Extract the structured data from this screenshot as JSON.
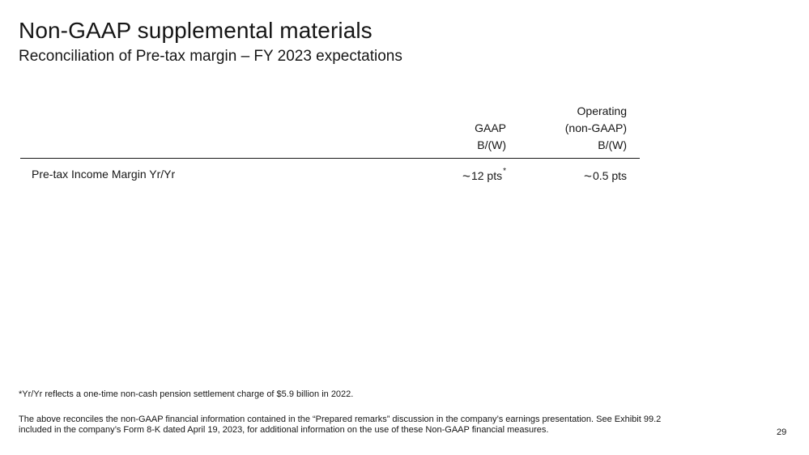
{
  "slide": {
    "title": "Non-GAAP supplemental materials",
    "subtitle": "Reconciliation of Pre-tax margin – FY 2023 expectations",
    "page_number": "29"
  },
  "table": {
    "columns": {
      "gaap": {
        "line1": "GAAP",
        "line2": "B/(W)"
      },
      "operating": {
        "line1": "Operating",
        "line2": "(non-GAAP)",
        "line3": "B/(W)"
      }
    },
    "rows": [
      {
        "label": "Pre-tax Income Margin Yr/Yr",
        "tilde": "~",
        "gaap": "12 pts",
        "gaap_mark": "*",
        "operating": "0.5 pts"
      }
    ]
  },
  "footnotes": {
    "asterisk_note": "*Yr/Yr reflects a one-time non-cash pension settlement charge of $5.9 billion in 2022.",
    "disclaimer_line1": "The above reconciles the non-GAAP financial information contained in the “Prepared remarks” discussion in the company’s earnings presentation.  See Exhibit 99.2",
    "disclaimer_line2": "included in the company’s Form 8-K dated April 19, 2023, for additional information on the use of these Non-GAAP financial measures."
  }
}
